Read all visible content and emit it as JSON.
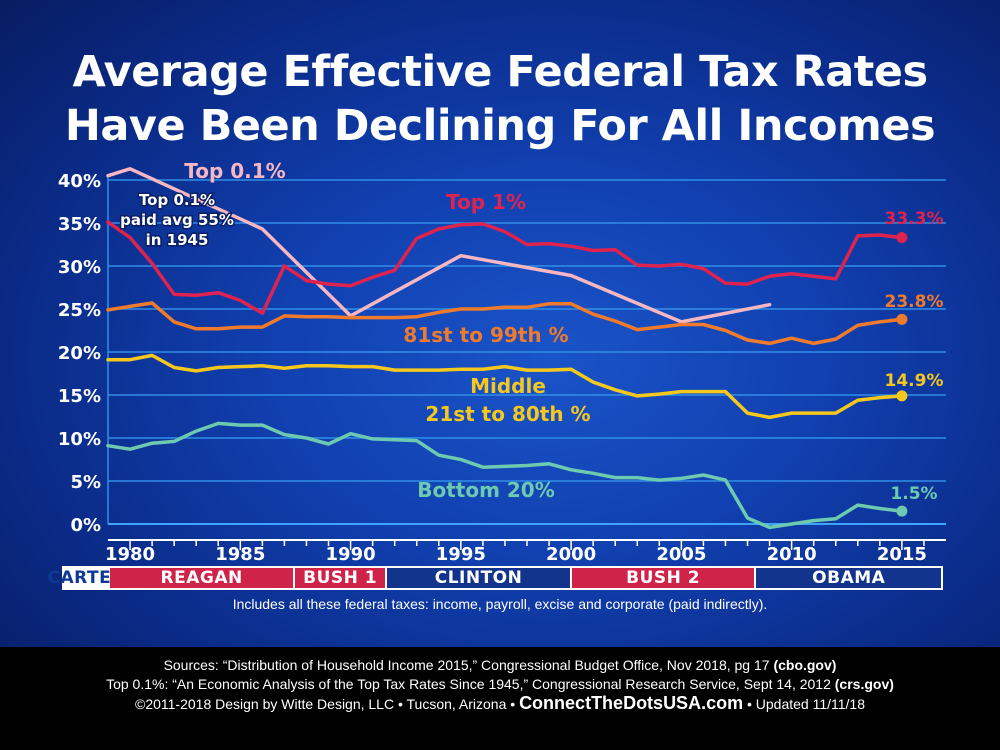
{
  "title_line1": "Average Effective Federal Tax Rates",
  "title_line2": "Have Been Declining For All Incomes",
  "chart_data": {
    "type": "line",
    "xlim": [
      1979,
      2017
    ],
    "ylim": [
      0,
      40
    ],
    "x_ticks": [
      "1980",
      "1985",
      "1990",
      "1995",
      "2000",
      "2005",
      "2010",
      "2015"
    ],
    "y_ticks": [
      "0%",
      "5%",
      "10%",
      "15%",
      "20%",
      "25%",
      "30%",
      "35%",
      "40%"
    ],
    "grid": true,
    "series": [
      {
        "name": "Top 0.1%",
        "color": "#f6b6c2",
        "x": [
          1979,
          1980,
          1986,
          1990,
          1995,
          2000,
          2005,
          2009
        ],
        "y": [
          40.5,
          41.3,
          34.3,
          24.2,
          31.2,
          28.9,
          23.5,
          25.5
        ],
        "label": "Top 0.1%"
      },
      {
        "name": "Top 1%",
        "color": "#e0234e",
        "x": [
          1979,
          1980,
          1981,
          1982,
          1983,
          1984,
          1985,
          1986,
          1987,
          1988,
          1989,
          1990,
          1991,
          1992,
          1993,
          1994,
          1995,
          1996,
          1997,
          1998,
          1999,
          2000,
          2001,
          2002,
          2003,
          2004,
          2005,
          2006,
          2007,
          2008,
          2009,
          2010,
          2011,
          2012,
          2013,
          2014,
          2015
        ],
        "y": [
          35.1,
          33.3,
          30.3,
          26.7,
          26.6,
          26.9,
          26.0,
          24.5,
          30.0,
          28.3,
          27.9,
          27.7,
          28.7,
          29.5,
          33.2,
          34.3,
          34.8,
          34.9,
          34.0,
          32.5,
          32.6,
          32.3,
          31.8,
          31.9,
          30.1,
          30.0,
          30.2,
          29.7,
          28.0,
          27.9,
          28.8,
          29.1,
          28.8,
          28.5,
          33.5,
          33.6,
          33.3
        ],
        "label": "Top 1%",
        "end_label": "33.3%"
      },
      {
        "name": "81st to 99th %",
        "color": "#f07b2c",
        "x": [
          1979,
          1980,
          1981,
          1982,
          1983,
          1984,
          1985,
          1986,
          1987,
          1988,
          1989,
          1990,
          1991,
          1992,
          1993,
          1994,
          1995,
          1996,
          1997,
          1998,
          1999,
          2000,
          2001,
          2002,
          2003,
          2004,
          2005,
          2006,
          2007,
          2008,
          2009,
          2010,
          2011,
          2012,
          2013,
          2014,
          2015
        ],
        "y": [
          24.9,
          25.3,
          25.7,
          23.5,
          22.7,
          22.7,
          22.9,
          22.9,
          24.2,
          24.1,
          24.1,
          24.0,
          24.0,
          24.0,
          24.1,
          24.6,
          25.0,
          25.0,
          25.2,
          25.2,
          25.6,
          25.6,
          24.4,
          23.6,
          22.6,
          22.9,
          23.2,
          23.2,
          22.5,
          21.4,
          21.0,
          21.6,
          21.0,
          21.5,
          23.1,
          23.5,
          23.8
        ],
        "label": "81st to 99th %",
        "end_label": "23.8%"
      },
      {
        "name": "Middle 21st to 80th %",
        "color": "#f6c81e",
        "x": [
          1979,
          1980,
          1981,
          1982,
          1983,
          1984,
          1985,
          1986,
          1987,
          1988,
          1989,
          1990,
          1991,
          1992,
          1993,
          1994,
          1995,
          1996,
          1997,
          1998,
          1999,
          2000,
          2001,
          2002,
          2003,
          2004,
          2005,
          2006,
          2007,
          2008,
          2009,
          2010,
          2011,
          2012,
          2013,
          2014,
          2015
        ],
        "y": [
          19.1,
          19.1,
          19.6,
          18.2,
          17.8,
          18.2,
          18.3,
          18.4,
          18.1,
          18.4,
          18.4,
          18.3,
          18.3,
          17.9,
          17.9,
          17.9,
          18.0,
          18.0,
          18.3,
          17.9,
          17.9,
          18.0,
          16.5,
          15.6,
          14.9,
          15.1,
          15.4,
          15.4,
          15.4,
          12.9,
          12.4,
          12.9,
          12.9,
          12.9,
          14.4,
          14.7,
          14.9
        ],
        "label_line1": "Middle",
        "label_line2": "21st to 80th %",
        "end_label": "14.9%"
      },
      {
        "name": "Bottom 20%",
        "color": "#6dc9b0",
        "x": [
          1979,
          1980,
          1981,
          1982,
          1983,
          1984,
          1985,
          1986,
          1987,
          1988,
          1989,
          1990,
          1991,
          1992,
          1993,
          1994,
          1995,
          1996,
          1997,
          1998,
          1999,
          2000,
          2001,
          2002,
          2003,
          2004,
          2005,
          2006,
          2007,
          2008,
          2009,
          2010,
          2011,
          2012,
          2013,
          2014,
          2015
        ],
        "y": [
          9.1,
          8.7,
          9.4,
          9.6,
          10.8,
          11.7,
          11.5,
          11.5,
          10.4,
          10.0,
          9.3,
          10.5,
          9.9,
          9.8,
          9.7,
          8.0,
          7.5,
          6.6,
          6.7,
          6.8,
          7.0,
          6.3,
          5.9,
          5.4,
          5.4,
          5.1,
          5.3,
          5.7,
          5.1,
          0.7,
          -0.4,
          0.0,
          0.4,
          0.6,
          2.2,
          1.8,
          1.5
        ],
        "label": "Bottom 20%",
        "end_label": "1.5%"
      }
    ],
    "annotation": [
      "Top 0.1%",
      "paid avg 55%",
      "in 1945"
    ]
  },
  "eras": [
    {
      "label": "CARTER",
      "start": 1979,
      "end": 1981,
      "color": "#ffffff",
      "text": "#0e3a96"
    },
    {
      "label": "REAGAN",
      "start": 1981,
      "end": 1989,
      "color": "#d0234a",
      "text": "#ffffff"
    },
    {
      "label": "BUSH 1",
      "start": 1989,
      "end": 1993,
      "color": "#d0234a",
      "text": "#ffffff"
    },
    {
      "label": "CLINTON",
      "start": 1993,
      "end": 2001,
      "color": "#12348c",
      "text": "#ffffff"
    },
    {
      "label": "BUSH 2",
      "start": 2001,
      "end": 2009,
      "color": "#d0234a",
      "text": "#ffffff"
    },
    {
      "label": "OBAMA",
      "start": 2009,
      "end": 2017,
      "color": "#12348c",
      "text": "#ffffff"
    }
  ],
  "note": "Includes all these federal taxes: income, payroll, excise and corporate (paid indirectly).",
  "footer": {
    "line1_text": "Sources: “Distribution of Household Income 2015,” Congressional Budget Office, Nov 2018, pg 17 ",
    "line1_bold": "(cbo.gov)",
    "line2_text": "Top 0.1%: “An Economic Analysis of the Top Tax Rates Since 1945,” Congressional Research Service, Sept 14, 2012 ",
    "line2_bold": "(crs.gov)",
    "line3_a": "©2011-2018 Design by Witte Design, LLC • Tucson, Arizona • ",
    "line3_site": "ConnectTheDotsUSA.com",
    "line3_b": " • Updated 11/11/18"
  }
}
